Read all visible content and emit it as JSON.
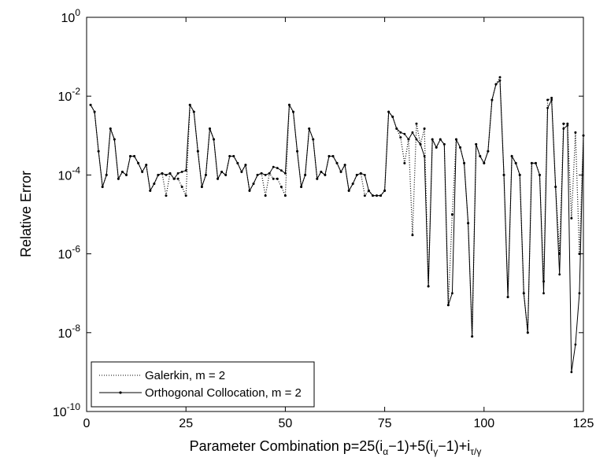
{
  "chart_data": {
    "type": "line",
    "title": "",
    "xlabel": "Parameter Combination p=25(iα−1)+5(iγ−1)+iτ/γ",
    "xlabel_parts": {
      "main": "Parameter Combination p=25(i",
      "sub1": "α",
      "mid1": "−1)+5(i",
      "sub2": "γ",
      "mid2": "−1)+i",
      "sub3": "τ/γ"
    },
    "ylabel": "Relative Error",
    "xlim": [
      0,
      125
    ],
    "ylim": [
      1e-10,
      1
    ],
    "yscale": "log",
    "xticks": [
      "0",
      "25",
      "50",
      "75",
      "100",
      "125"
    ],
    "yticks": [
      {
        "base": "10",
        "exp": "0"
      },
      {
        "base": "10",
        "exp": "-2"
      },
      {
        "base": "10",
        "exp": "-4"
      },
      {
        "base": "10",
        "exp": "-6"
      },
      {
        "base": "10",
        "exp": "-8"
      },
      {
        "base": "10",
        "exp": "-10"
      }
    ],
    "grid": false,
    "legend_position": "bottom-left",
    "series": [
      {
        "name": "Galerkin, m = 2",
        "style": "dotted",
        "color": "#000000",
        "x": [
          1,
          2,
          3,
          4,
          5,
          6,
          7,
          8,
          9,
          10,
          11,
          12,
          13,
          14,
          15,
          16,
          17,
          18,
          19,
          20,
          21,
          22,
          23,
          24,
          25,
          26,
          27,
          28,
          29,
          30,
          31,
          32,
          33,
          34,
          35,
          36,
          37,
          38,
          39,
          40,
          41,
          42,
          43,
          44,
          45,
          46,
          47,
          48,
          49,
          50,
          51,
          52,
          53,
          54,
          55,
          56,
          57,
          58,
          59,
          60,
          61,
          62,
          63,
          64,
          65,
          66,
          67,
          68,
          69,
          70,
          71,
          72,
          73,
          74,
          75,
          76,
          77,
          78,
          79,
          80,
          81,
          82,
          83,
          84,
          85,
          86,
          87,
          88,
          89,
          90,
          91,
          92,
          93,
          94,
          95,
          96,
          97,
          98,
          99,
          100,
          101,
          102,
          103,
          104,
          105,
          106,
          107,
          108,
          109,
          110,
          111,
          112,
          113,
          114,
          115,
          116,
          117,
          118,
          119,
          120,
          121,
          122,
          123,
          124,
          125
        ],
        "y": [
          0.006,
          0.004,
          0.0004,
          5e-05,
          0.0001,
          0.0015,
          0.0008,
          8e-05,
          0.00012,
          0.0001,
          0.0003,
          0.0003,
          0.0002,
          0.00012,
          0.00018,
          4e-05,
          6e-05,
          0.0001,
          0.00011,
          3e-05,
          0.00011,
          8e-05,
          8e-05,
          5e-05,
          3e-05,
          0.006,
          0.004,
          0.0004,
          5e-05,
          0.0001,
          0.0015,
          0.0008,
          8e-05,
          0.00012,
          0.0001,
          0.0003,
          0.0003,
          0.0002,
          0.00012,
          0.00018,
          4e-05,
          6e-05,
          0.0001,
          0.00011,
          3e-05,
          0.00011,
          8e-05,
          8e-05,
          5e-05,
          3e-05,
          0.006,
          0.004,
          0.0004,
          5e-05,
          0.0001,
          0.0015,
          0.0008,
          8e-05,
          0.00012,
          0.0001,
          0.0003,
          0.0003,
          0.0002,
          0.00012,
          0.00018,
          4e-05,
          6e-05,
          0.0001,
          0.00011,
          3e-05,
          4e-05,
          3e-05,
          3e-05,
          3e-05,
          4e-05,
          0.004,
          0.003,
          0.0015,
          0.0009,
          0.0002,
          0.0008,
          3e-06,
          0.002,
          0.0006,
          0.0015,
          1.5e-07,
          0.0008,
          0.0005,
          0.0008,
          0.0006,
          5e-08,
          1e-05,
          0.0008,
          0.0005,
          0.0002,
          6e-06,
          8e-09,
          0.0006,
          0.0003,
          0.0002,
          0.0004,
          0.008,
          0.02,
          0.03,
          0.0001,
          8e-08,
          0.0003,
          0.0002,
          0.0001,
          1e-07,
          1e-08,
          0.0002,
          0.0002,
          0.0001,
          2e-07,
          0.008,
          0.009,
          5e-05,
          1e-06,
          0.002,
          0.002,
          8e-06,
          0.0012,
          1e-06,
          0.001
        ]
      },
      {
        "name": "Orthogonal Collocation, m = 2",
        "style": "solid",
        "color": "#000000",
        "x": [
          1,
          2,
          3,
          4,
          5,
          6,
          7,
          8,
          9,
          10,
          11,
          12,
          13,
          14,
          15,
          16,
          17,
          18,
          19,
          20,
          21,
          22,
          23,
          24,
          25,
          26,
          27,
          28,
          29,
          30,
          31,
          32,
          33,
          34,
          35,
          36,
          37,
          38,
          39,
          40,
          41,
          42,
          43,
          44,
          45,
          46,
          47,
          48,
          49,
          50,
          51,
          52,
          53,
          54,
          55,
          56,
          57,
          58,
          59,
          60,
          61,
          62,
          63,
          64,
          65,
          66,
          67,
          68,
          69,
          70,
          71,
          72,
          73,
          74,
          75,
          76,
          77,
          78,
          79,
          80,
          81,
          82,
          83,
          84,
          85,
          86,
          87,
          88,
          89,
          90,
          91,
          92,
          93,
          94,
          95,
          96,
          97,
          98,
          99,
          100,
          101,
          102,
          103,
          104,
          105,
          106,
          107,
          108,
          109,
          110,
          111,
          112,
          113,
          114,
          115,
          116,
          117,
          118,
          119,
          120,
          121,
          122,
          123,
          124,
          125
        ],
        "y": [
          0.006,
          0.004,
          0.0004,
          5e-05,
          0.0001,
          0.0015,
          0.0008,
          8e-05,
          0.00012,
          0.0001,
          0.0003,
          0.0003,
          0.0002,
          0.00012,
          0.00018,
          4e-05,
          6e-05,
          0.0001,
          0.00011,
          0.0001,
          0.00011,
          8e-05,
          0.00011,
          0.00012,
          0.00013,
          0.006,
          0.004,
          0.0004,
          5e-05,
          0.0001,
          0.0015,
          0.0008,
          8e-05,
          0.00012,
          0.0001,
          0.0003,
          0.0003,
          0.0002,
          0.00012,
          0.00018,
          4e-05,
          6e-05,
          0.0001,
          0.00011,
          0.0001,
          0.00011,
          0.00016,
          0.00015,
          0.00013,
          0.00011,
          0.006,
          0.004,
          0.0004,
          5e-05,
          0.0001,
          0.0015,
          0.0008,
          8e-05,
          0.00012,
          0.0001,
          0.0003,
          0.0003,
          0.0002,
          0.00012,
          0.00018,
          4e-05,
          6e-05,
          0.0001,
          0.00011,
          0.0001,
          4e-05,
          3e-05,
          3e-05,
          3e-05,
          4e-05,
          0.004,
          0.003,
          0.0015,
          0.0012,
          0.0011,
          0.0008,
          0.0012,
          0.0008,
          0.0006,
          0.0003,
          1.5e-07,
          0.0008,
          0.0005,
          0.0008,
          0.0006,
          5e-08,
          1e-07,
          0.0008,
          0.0005,
          0.0002,
          6e-06,
          8e-09,
          0.0006,
          0.0003,
          0.0002,
          0.0004,
          0.008,
          0.02,
          0.025,
          0.0001,
          8e-08,
          0.0003,
          0.0002,
          0.0001,
          1e-07,
          1e-08,
          0.0002,
          0.0002,
          0.0001,
          1e-07,
          0.005,
          0.008,
          5e-05,
          3e-07,
          0.0015,
          0.0018,
          1e-09,
          5e-09,
          1e-07,
          0.001
        ]
      }
    ]
  }
}
